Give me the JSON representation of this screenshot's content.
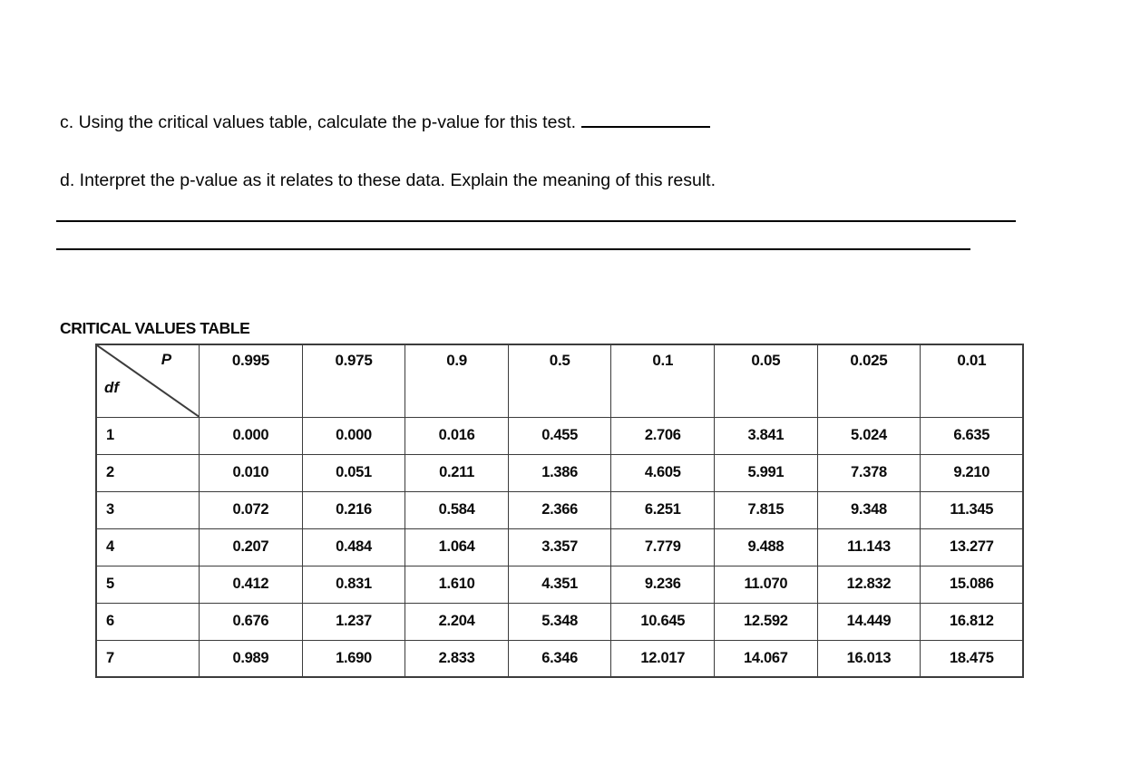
{
  "questions": {
    "c": "c. Using the critical values table, calculate the p-value for this test.",
    "d": "d. Interpret the p-value as it relates to these data. Explain the meaning of this result."
  },
  "table": {
    "title": "CRITICAL VALUES TABLE",
    "corner": {
      "top_label": "P",
      "bottom_label": "df"
    },
    "p_headers": [
      "0.995",
      "0.975",
      "0.9",
      "0.5",
      "0.1",
      "0.05",
      "0.025",
      "0.01"
    ],
    "rows": [
      {
        "df": "1",
        "values": [
          "0.000",
          "0.000",
          "0.016",
          "0.455",
          "2.706",
          "3.841",
          "5.024",
          "6.635"
        ]
      },
      {
        "df": "2",
        "values": [
          "0.010",
          "0.051",
          "0.211",
          "1.386",
          "4.605",
          "5.991",
          "7.378",
          "9.210"
        ]
      },
      {
        "df": "3",
        "values": [
          "0.072",
          "0.216",
          "0.584",
          "2.366",
          "6.251",
          "7.815",
          "9.348",
          "11.345"
        ]
      },
      {
        "df": "4",
        "values": [
          "0.207",
          "0.484",
          "1.064",
          "3.357",
          "7.779",
          "9.488",
          "11.143",
          "13.277"
        ]
      },
      {
        "df": "5",
        "values": [
          "0.412",
          "0.831",
          "1.610",
          "4.351",
          "9.236",
          "11.070",
          "12.832",
          "15.086"
        ]
      },
      {
        "df": "6",
        "values": [
          "0.676",
          "1.237",
          "2.204",
          "5.348",
          "10.645",
          "12.592",
          "14.449",
          "16.812"
        ]
      },
      {
        "df": "7",
        "values": [
          "0.989",
          "1.690",
          "2.833",
          "6.346",
          "12.017",
          "14.067",
          "16.013",
          "18.475"
        ]
      }
    ]
  }
}
